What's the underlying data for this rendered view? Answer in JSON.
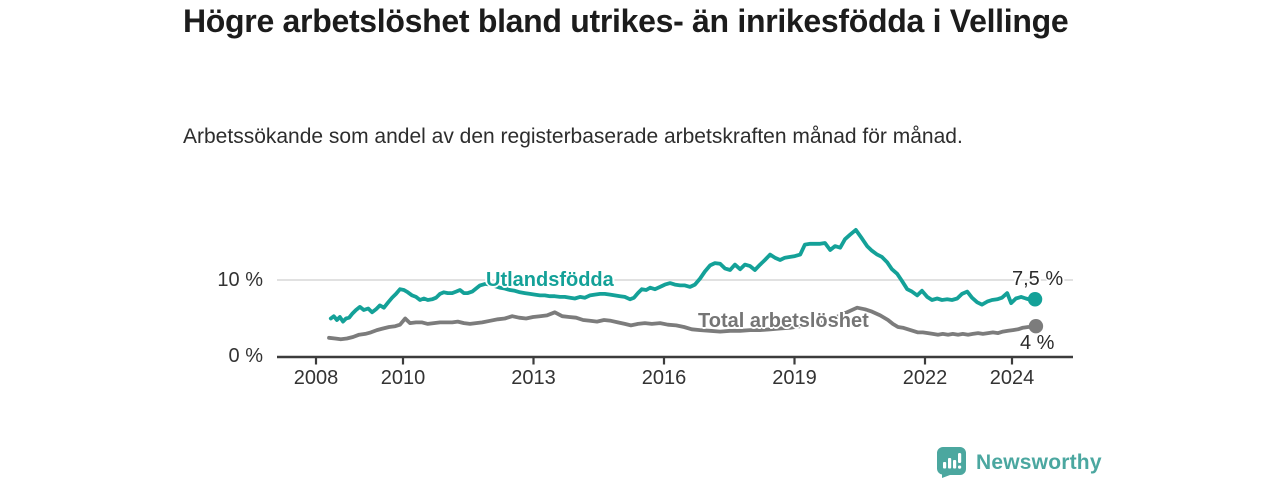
{
  "title": "Högre arbetslöshet bland utrikes- än inrikesfödda i Vellinge",
  "subtitle": "Arbetssökande som andel av den registerbaserade arbetskraften månad för månad.",
  "branding": {
    "logo_text": "Newsworthy",
    "logo_icon": "bar-chart-speech-bubble-icon"
  },
  "colors": {
    "series_foreign_born": "#14A198",
    "series_total": "#7C7C7C",
    "series_total_label": "#757575",
    "axis": "#3C3C3C",
    "gridline": "#CFCFCF",
    "tick_text": "#333333",
    "end_label_text": "#2B2B2B",
    "logo_teal": "#4BA7A0",
    "title_text": "#1C1C1C"
  },
  "chart_data": {
    "type": "line",
    "title": "Högre arbetslöshet bland utrikes- än inrikesfödda i Vellinge",
    "xlabel": "",
    "ylabel": "Arbetssökande som andel av den registerbaserade arbetskraften (%)",
    "x_axis": {
      "ticks": [
        2008,
        2010,
        2013,
        2016,
        2019,
        2022,
        2024
      ],
      "range": [
        2007.1,
        2025.4
      ],
      "unit": "year"
    },
    "y_axis": {
      "ticks": [
        {
          "value": 0,
          "label": "0 %"
        },
        {
          "value": 10,
          "label": "10 %"
        }
      ],
      "range": [
        0,
        17.8
      ],
      "unit": "%"
    },
    "grid": "horizontal-at-10-only",
    "legend_position": "inline-labels-on-lines",
    "series": [
      {
        "name": "Utlandsfödda",
        "end_label": "7,5 %",
        "end_value": 7.5,
        "color": "#14A198",
        "points": [
          [
            2008.34,
            5.0
          ],
          [
            2008.41,
            5.3
          ],
          [
            2008.48,
            4.8
          ],
          [
            2008.55,
            5.2
          ],
          [
            2008.62,
            4.6
          ],
          [
            2008.69,
            5.0
          ],
          [
            2008.76,
            5.1
          ],
          [
            2008.83,
            5.6
          ],
          [
            2008.92,
            6.1
          ],
          [
            2009.01,
            6.5
          ],
          [
            2009.1,
            6.1
          ],
          [
            2009.2,
            6.3
          ],
          [
            2009.29,
            5.8
          ],
          [
            2009.38,
            6.2
          ],
          [
            2009.47,
            6.7
          ],
          [
            2009.56,
            6.4
          ],
          [
            2009.66,
            7.1
          ],
          [
            2009.75,
            7.7
          ],
          [
            2009.84,
            8.2
          ],
          [
            2009.93,
            8.8
          ],
          [
            2010.02,
            8.7
          ],
          [
            2010.11,
            8.4
          ],
          [
            2010.21,
            8.0
          ],
          [
            2010.3,
            7.8
          ],
          [
            2010.39,
            7.4
          ],
          [
            2010.48,
            7.6
          ],
          [
            2010.57,
            7.4
          ],
          [
            2010.67,
            7.5
          ],
          [
            2010.76,
            7.7
          ],
          [
            2010.85,
            8.2
          ],
          [
            2010.94,
            8.4
          ],
          [
            2011.03,
            8.3
          ],
          [
            2011.13,
            8.3
          ],
          [
            2011.22,
            8.5
          ],
          [
            2011.31,
            8.7
          ],
          [
            2011.4,
            8.3
          ],
          [
            2011.49,
            8.3
          ],
          [
            2011.59,
            8.5
          ],
          [
            2011.68,
            8.9
          ],
          [
            2011.77,
            9.3
          ],
          [
            2011.89,
            9.5
          ],
          [
            2012.0,
            9.4
          ],
          [
            2012.11,
            9.2
          ],
          [
            2012.23,
            9.0
          ],
          [
            2012.34,
            8.9
          ],
          [
            2012.46,
            8.7
          ],
          [
            2012.57,
            8.6
          ],
          [
            2012.69,
            8.4
          ],
          [
            2012.8,
            8.3
          ],
          [
            2012.92,
            8.2
          ],
          [
            2013.03,
            8.1
          ],
          [
            2013.15,
            8.0
          ],
          [
            2013.26,
            8.0
          ],
          [
            2013.38,
            7.9
          ],
          [
            2013.49,
            7.9
          ],
          [
            2013.61,
            7.8
          ],
          [
            2013.72,
            7.8
          ],
          [
            2013.84,
            7.7
          ],
          [
            2013.95,
            7.6
          ],
          [
            2014.07,
            7.8
          ],
          [
            2014.18,
            7.7
          ],
          [
            2014.3,
            8.0
          ],
          [
            2014.41,
            8.1
          ],
          [
            2014.53,
            8.2
          ],
          [
            2014.64,
            8.2
          ],
          [
            2014.76,
            8.1
          ],
          [
            2014.87,
            8.0
          ],
          [
            2014.99,
            7.9
          ],
          [
            2015.1,
            7.8
          ],
          [
            2015.22,
            7.5
          ],
          [
            2015.31,
            7.7
          ],
          [
            2015.4,
            8.3
          ],
          [
            2015.49,
            8.8
          ],
          [
            2015.59,
            8.7
          ],
          [
            2015.68,
            9.0
          ],
          [
            2015.79,
            8.8
          ],
          [
            2015.91,
            9.1
          ],
          [
            2016.02,
            9.4
          ],
          [
            2016.14,
            9.6
          ],
          [
            2016.25,
            9.4
          ],
          [
            2016.37,
            9.3
          ],
          [
            2016.48,
            9.3
          ],
          [
            2016.6,
            9.1
          ],
          [
            2016.71,
            9.4
          ],
          [
            2016.83,
            10.2
          ],
          [
            2016.94,
            11.1
          ],
          [
            2017.06,
            11.9
          ],
          [
            2017.17,
            12.2
          ],
          [
            2017.29,
            12.1
          ],
          [
            2017.4,
            11.5
          ],
          [
            2017.52,
            11.3
          ],
          [
            2017.63,
            12.0
          ],
          [
            2017.75,
            11.4
          ],
          [
            2017.86,
            12.0
          ],
          [
            2017.98,
            11.8
          ],
          [
            2018.09,
            11.3
          ],
          [
            2018.21,
            12.0
          ],
          [
            2018.32,
            12.6
          ],
          [
            2018.44,
            13.3
          ],
          [
            2018.55,
            12.9
          ],
          [
            2018.67,
            12.6
          ],
          [
            2018.78,
            12.9
          ],
          [
            2018.9,
            13.0
          ],
          [
            2019.01,
            13.1
          ],
          [
            2019.13,
            13.3
          ],
          [
            2019.24,
            14.6
          ],
          [
            2019.36,
            14.7
          ],
          [
            2019.47,
            14.7
          ],
          [
            2019.59,
            14.7
          ],
          [
            2019.7,
            14.8
          ],
          [
            2019.82,
            13.9
          ],
          [
            2019.93,
            14.4
          ],
          [
            2020.05,
            14.2
          ],
          [
            2020.16,
            15.3
          ],
          [
            2020.28,
            15.9
          ],
          [
            2020.41,
            16.5
          ],
          [
            2020.55,
            15.4
          ],
          [
            2020.67,
            14.4
          ],
          [
            2020.78,
            13.8
          ],
          [
            2020.9,
            13.3
          ],
          [
            2021.01,
            13.0
          ],
          [
            2021.13,
            12.3
          ],
          [
            2021.24,
            11.4
          ],
          [
            2021.36,
            10.8
          ],
          [
            2021.47,
            9.9
          ],
          [
            2021.59,
            8.8
          ],
          [
            2021.7,
            8.5
          ],
          [
            2021.82,
            8.0
          ],
          [
            2021.93,
            8.6
          ],
          [
            2022.05,
            7.8
          ],
          [
            2022.16,
            7.4
          ],
          [
            2022.28,
            7.6
          ],
          [
            2022.39,
            7.4
          ],
          [
            2022.51,
            7.5
          ],
          [
            2022.62,
            7.4
          ],
          [
            2022.74,
            7.6
          ],
          [
            2022.85,
            8.2
          ],
          [
            2022.97,
            8.5
          ],
          [
            2023.08,
            7.7
          ],
          [
            2023.2,
            7.1
          ],
          [
            2023.31,
            6.8
          ],
          [
            2023.43,
            7.2
          ],
          [
            2023.54,
            7.4
          ],
          [
            2023.66,
            7.5
          ],
          [
            2023.77,
            7.7
          ],
          [
            2023.89,
            8.3
          ],
          [
            2023.98,
            7.0
          ],
          [
            2024.09,
            7.6
          ],
          [
            2024.21,
            7.8
          ],
          [
            2024.32,
            7.6
          ],
          [
            2024.44,
            7.4
          ],
          [
            2024.53,
            7.5
          ]
        ]
      },
      {
        "name": "Total arbetslöshet",
        "end_label": "4 %",
        "end_value": 4.0,
        "color": "#7C7C7C",
        "points": [
          [
            2008.3,
            2.5
          ],
          [
            2008.44,
            2.4
          ],
          [
            2008.57,
            2.3
          ],
          [
            2008.71,
            2.4
          ],
          [
            2008.85,
            2.6
          ],
          [
            2008.99,
            2.9
          ],
          [
            2009.13,
            3.0
          ],
          [
            2009.26,
            3.2
          ],
          [
            2009.4,
            3.5
          ],
          [
            2009.54,
            3.7
          ],
          [
            2009.68,
            3.9
          ],
          [
            2009.82,
            4.0
          ],
          [
            2009.93,
            4.2
          ],
          [
            2010.05,
            5.0
          ],
          [
            2010.16,
            4.4
          ],
          [
            2010.3,
            4.5
          ],
          [
            2010.44,
            4.5
          ],
          [
            2010.57,
            4.3
          ],
          [
            2010.71,
            4.4
          ],
          [
            2010.85,
            4.5
          ],
          [
            2010.99,
            4.5
          ],
          [
            2011.13,
            4.5
          ],
          [
            2011.26,
            4.6
          ],
          [
            2011.4,
            4.4
          ],
          [
            2011.54,
            4.3
          ],
          [
            2011.68,
            4.4
          ],
          [
            2011.82,
            4.5
          ],
          [
            2012.0,
            4.7
          ],
          [
            2012.18,
            4.9
          ],
          [
            2012.34,
            5.0
          ],
          [
            2012.51,
            5.3
          ],
          [
            2012.67,
            5.1
          ],
          [
            2012.83,
            5.0
          ],
          [
            2012.99,
            5.2
          ],
          [
            2013.15,
            5.3
          ],
          [
            2013.31,
            5.4
          ],
          [
            2013.49,
            5.8
          ],
          [
            2013.66,
            5.3
          ],
          [
            2013.82,
            5.2
          ],
          [
            2013.98,
            5.1
          ],
          [
            2014.14,
            4.8
          ],
          [
            2014.3,
            4.7
          ],
          [
            2014.46,
            4.6
          ],
          [
            2014.62,
            4.8
          ],
          [
            2014.78,
            4.7
          ],
          [
            2014.94,
            4.5
          ],
          [
            2015.1,
            4.3
          ],
          [
            2015.24,
            4.1
          ],
          [
            2015.4,
            4.3
          ],
          [
            2015.56,
            4.4
          ],
          [
            2015.72,
            4.3
          ],
          [
            2015.91,
            4.4
          ],
          [
            2016.09,
            4.2
          ],
          [
            2016.28,
            4.1
          ],
          [
            2016.46,
            3.9
          ],
          [
            2016.64,
            3.6
          ],
          [
            2016.83,
            3.5
          ],
          [
            2017.06,
            3.4
          ],
          [
            2017.29,
            3.3
          ],
          [
            2017.52,
            3.4
          ],
          [
            2017.75,
            3.4
          ],
          [
            2017.98,
            3.5
          ],
          [
            2018.21,
            3.5
          ],
          [
            2018.44,
            3.6
          ],
          [
            2018.67,
            3.7
          ],
          [
            2018.9,
            3.8
          ],
          [
            2019.13,
            4.0
          ],
          [
            2019.36,
            4.2
          ],
          [
            2019.59,
            4.4
          ],
          [
            2019.82,
            4.8
          ],
          [
            2020.05,
            5.4
          ],
          [
            2020.28,
            6.0
          ],
          [
            2020.44,
            6.4
          ],
          [
            2020.62,
            6.2
          ],
          [
            2020.78,
            5.9
          ],
          [
            2020.97,
            5.4
          ],
          [
            2021.15,
            4.8
          ],
          [
            2021.26,
            4.3
          ],
          [
            2021.38,
            3.9
          ],
          [
            2021.49,
            3.8
          ],
          [
            2021.61,
            3.6
          ],
          [
            2021.72,
            3.4
          ],
          [
            2021.84,
            3.2
          ],
          [
            2021.95,
            3.2
          ],
          [
            2022.07,
            3.1
          ],
          [
            2022.18,
            3.0
          ],
          [
            2022.3,
            2.9
          ],
          [
            2022.41,
            3.0
          ],
          [
            2022.53,
            2.9
          ],
          [
            2022.64,
            3.0
          ],
          [
            2022.76,
            2.9
          ],
          [
            2022.87,
            3.0
          ],
          [
            2022.99,
            2.9
          ],
          [
            2023.1,
            3.0
          ],
          [
            2023.22,
            3.1
          ],
          [
            2023.33,
            3.0
          ],
          [
            2023.45,
            3.1
          ],
          [
            2023.56,
            3.2
          ],
          [
            2023.68,
            3.1
          ],
          [
            2023.79,
            3.3
          ],
          [
            2023.91,
            3.4
          ],
          [
            2024.02,
            3.5
          ],
          [
            2024.14,
            3.6
          ],
          [
            2024.25,
            3.8
          ],
          [
            2024.37,
            3.9
          ],
          [
            2024.48,
            3.9
          ],
          [
            2024.55,
            4.0
          ]
        ]
      }
    ]
  }
}
